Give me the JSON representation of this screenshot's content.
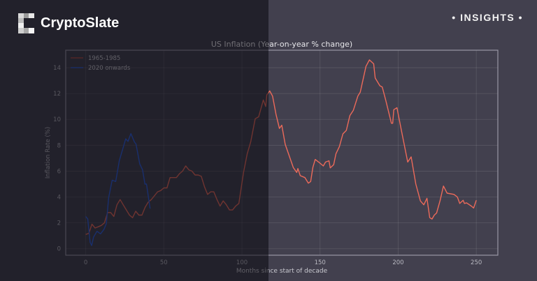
{
  "brand": {
    "name": "CryptoSlate",
    "badge": "• INSIGHTS •"
  },
  "colors": {
    "background": "#42404e",
    "series_1965": "#ec6a5a",
    "series_2020": "#2d5fe0"
  },
  "chart_data": {
    "type": "line",
    "title": "US Inflation (Year-on-year % change)",
    "xlabel": "Months since start of decade",
    "ylabel": "Inflation Rate (%)",
    "xlim": [
      -12.8,
      263.8
    ],
    "ylim": [
      -0.5,
      15.35
    ],
    "xticks": [
      0,
      50,
      100,
      150,
      200,
      250
    ],
    "yticks": [
      0,
      2,
      4,
      6,
      8,
      10,
      12,
      14
    ],
    "grid": true,
    "legend": "top-left",
    "series": [
      {
        "name": "1965-1985",
        "x": [
          0,
          2,
          4,
          6,
          8,
          10,
          12,
          14,
          16,
          18,
          20,
          22,
          24,
          26,
          28,
          30,
          32,
          34,
          36,
          38,
          40,
          42,
          44,
          46,
          48,
          50,
          52,
          54,
          56,
          58,
          60,
          62,
          64,
          66,
          68,
          70,
          72,
          74,
          76,
          78,
          80,
          82,
          84,
          86,
          88,
          90,
          92,
          94,
          96,
          98,
          101,
          103.4,
          105.6,
          108.5,
          110.7,
          113.7,
          115.2,
          115.9,
          117.8,
          119.6,
          121.8,
          124,
          125.5,
          127.7,
          132.9,
          135.1,
          135.8,
          137.3,
          140.3,
          142.5,
          144,
          145.4,
          146.9,
          149.1,
          152.1,
          153.5,
          155.7,
          156.5,
          158.7,
          160.2,
          162.4,
          164.6,
          166.8,
          169.1,
          171.3,
          174.2,
          175.7,
          179.4,
          181.6,
          184.3,
          185.3,
          188.3,
          189.8,
          192,
          195.7,
          196.5,
          197.2,
          199.2,
          202.4,
          206.1,
          208.3,
          211.3,
          214.2,
          216.4,
          218.4,
          220.2,
          221.7,
          223.1,
          224.6,
          226.8,
          229,
          231.3,
          235.7,
          237.9,
          239.4,
          241.6,
          242.4,
          243.8,
          246.8,
          248.3,
          250
        ],
        "y": [
          1.1,
          1.2,
          1.9,
          1.6,
          1.7,
          1.8,
          2.0,
          2.8,
          2.8,
          2.5,
          3.4,
          3.8,
          3.4,
          3.0,
          2.6,
          2.4,
          2.9,
          2.6,
          2.6,
          3.2,
          3.6,
          3.8,
          4.1,
          4.4,
          4.5,
          4.7,
          4.7,
          5.5,
          5.5,
          5.5,
          5.8,
          6.0,
          6.4,
          6.1,
          6.0,
          5.7,
          5.7,
          5.6,
          4.8,
          4.2,
          4.4,
          4.4,
          3.8,
          3.3,
          3.7,
          3.4,
          3.0,
          3.0,
          3.3,
          3.5,
          5.9,
          7.35,
          8.25,
          10.05,
          10.2,
          11.5,
          11.0,
          11.9,
          12.2,
          11.8,
          10.4,
          9.3,
          9.55,
          8.07,
          6.27,
          5.9,
          6.2,
          5.65,
          5.5,
          5.07,
          5.2,
          6.3,
          6.9,
          6.7,
          6.4,
          6.7,
          6.8,
          6.25,
          6.5,
          7.35,
          7.9,
          8.88,
          9.15,
          10.3,
          10.7,
          11.8,
          12.1,
          14.1,
          14.6,
          14.3,
          13.2,
          12.6,
          12.5,
          11.5,
          9.7,
          9.7,
          10.75,
          10.9,
          8.95,
          6.7,
          7.1,
          5.0,
          3.7,
          3.4,
          3.9,
          2.4,
          2.3,
          2.6,
          2.76,
          3.7,
          4.85,
          4.3,
          4.2,
          4.0,
          3.5,
          3.75,
          3.5,
          3.55,
          3.3,
          3.15,
          3.75
        ]
      },
      {
        "name": "2020 onwards",
        "x": [
          0,
          1.3,
          2.8,
          3.8,
          5.0,
          7.2,
          9.5,
          11.7,
          13.2,
          14.7,
          16.9,
          19.2,
          21.5,
          25.6,
          27.1,
          28.9,
          31.2,
          32.2,
          34.6,
          36.4,
          37.9,
          38.9,
          41.2
        ],
        "y": [
          2.5,
          2.3,
          0.5,
          0.25,
          0.9,
          1.35,
          1.15,
          1.5,
          1.95,
          3.95,
          5.3,
          5.2,
          6.8,
          8.5,
          8.3,
          8.9,
          8.25,
          8.1,
          6.55,
          6.1,
          5.0,
          5.0,
          3.1
        ]
      }
    ]
  }
}
